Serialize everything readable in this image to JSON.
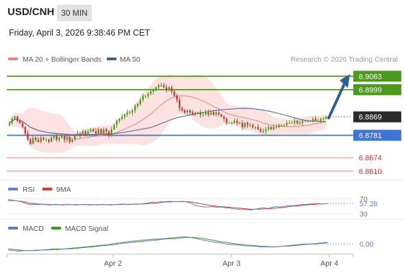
{
  "header": {
    "symbol": "USD/CNH",
    "timeframe": "30 MIN",
    "datetime": "Friday, April 3, 2026 9:38:46 PM CET"
  },
  "legend": {
    "ma20": "MA 20 + Bollinger Bands",
    "ma50": "MA 50",
    "credit": "Research © 2026 Trading Central"
  },
  "colors": {
    "resistance": "#4c9a1c",
    "support": "#3d74d8",
    "minor_support": "#f19393",
    "current": "#2b2b2b",
    "arrow": "#2c5e99",
    "candle_up": "#4a9a18",
    "candle_down": "#c83232",
    "ma20": "#ef7f7f",
    "ma50": "#3f5f9a",
    "bollinger_fill": "#fddddd",
    "rsi": "#5b7fd6",
    "rsi_ma": "#e63030",
    "macd": "#5b7fd6",
    "macd_signal": "#3a9a1a"
  },
  "chart_data": [
    {
      "type": "candlestick",
      "title": "USD/CNH 30 MIN",
      "x_ticks": [
        "Apr 2",
        "Apr 3",
        "Apr 4"
      ],
      "ylim": [
        6.857,
        6.91
      ],
      "levels": [
        {
          "label": "6.9063",
          "value": 6.9063,
          "kind": "resistance"
        },
        {
          "label": "6.8999",
          "value": 6.8999,
          "kind": "resistance"
        },
        {
          "label": "6.8869",
          "value": 6.8869,
          "kind": "current"
        },
        {
          "label": "6.8781",
          "value": 6.8781,
          "kind": "support"
        },
        {
          "label": "6.8674",
          "value": 6.8674,
          "kind": "minor_support"
        },
        {
          "label": "6.8610",
          "value": 6.861,
          "kind": "minor_support"
        }
      ],
      "forecast_target": 6.9063,
      "series": [
        {
          "name": "MA 20 + Bollinger Bands"
        },
        {
          "name": "MA 50"
        }
      ],
      "close": [
        6.884,
        6.886,
        6.887,
        6.885,
        6.884,
        6.882,
        6.879,
        6.876,
        6.874,
        6.877,
        6.876,
        6.875,
        6.877,
        6.876,
        6.876,
        6.875,
        6.877,
        6.878,
        6.876,
        6.877,
        6.878,
        6.876,
        6.877,
        6.875,
        6.876,
        6.878,
        6.879,
        6.878,
        6.88,
        6.878,
        6.88,
        6.881,
        6.88,
        6.879,
        6.881,
        6.879,
        6.881,
        6.88,
        6.878,
        6.881,
        6.883,
        6.885,
        6.886,
        6.887,
        6.888,
        6.889,
        6.889,
        6.89,
        6.892,
        6.893,
        6.895,
        6.897,
        6.897,
        6.898,
        6.899,
        6.9,
        6.901,
        6.902,
        6.902,
        6.901,
        6.9,
        6.901,
        6.899,
        6.897,
        6.895,
        6.891,
        6.89,
        6.889,
        6.89,
        6.889,
        6.888,
        6.889,
        6.889,
        6.888,
        6.888,
        6.889,
        6.888,
        6.889,
        6.888,
        6.889,
        6.888,
        6.887,
        6.886,
        6.884,
        6.884,
        6.884,
        6.885,
        6.884,
        6.884,
        6.882,
        6.884,
        6.883,
        6.883,
        6.882,
        6.882,
        6.881,
        6.88,
        6.88,
        6.881,
        6.882,
        6.881,
        6.882,
        6.882,
        6.883,
        6.883,
        6.883,
        6.884,
        6.884,
        6.884,
        6.885,
        6.884,
        6.884,
        6.885,
        6.885,
        6.885,
        6.885,
        6.886,
        6.885,
        6.885,
        6.886,
        6.886,
        6.887
      ]
    },
    {
      "type": "line",
      "title": "RSI",
      "ylim": [
        30,
        70
      ],
      "y_ticks": [
        30,
        70
      ],
      "current_value": 57.28,
      "series": [
        {
          "name": "RSI",
          "values": [
            67,
            66,
            64,
            62,
            58,
            54,
            55,
            54,
            55,
            54,
            53,
            55,
            54,
            53,
            55,
            54,
            53,
            54,
            55,
            53,
            54,
            53,
            55,
            54,
            53,
            54,
            55,
            56,
            54,
            55,
            56,
            56,
            57,
            59,
            61,
            60,
            62,
            62,
            63,
            62,
            62,
            63,
            61,
            58,
            52,
            50,
            48,
            48,
            49,
            47,
            48,
            46,
            45,
            43,
            42,
            41,
            41,
            40,
            42,
            44,
            46,
            44,
            47,
            49,
            48,
            50,
            52,
            51,
            53,
            54,
            55,
            56,
            57,
            57,
            56,
            57
          ]
        },
        {
          "name": "9MA",
          "values": [
            65,
            65,
            64,
            63,
            61,
            58,
            57,
            56,
            55,
            55,
            54,
            54,
            54,
            54,
            54,
            54,
            54,
            54,
            54,
            54,
            54,
            54,
            54,
            54,
            54,
            54,
            54,
            55,
            55,
            55,
            55,
            56,
            56,
            57,
            58,
            59,
            60,
            61,
            61,
            62,
            62,
            62,
            62,
            61,
            59,
            57,
            55,
            53,
            51,
            50,
            49,
            48,
            47,
            46,
            45,
            44,
            43,
            42,
            42,
            42,
            43,
            43,
            44,
            45,
            46,
            47,
            49,
            50,
            51,
            52,
            53,
            54,
            55,
            56,
            56,
            57
          ]
        }
      ]
    },
    {
      "type": "line",
      "title": "MACD",
      "current_value": 0.0,
      "y_ticks": [
        0.0
      ],
      "series": [
        {
          "name": "MACD",
          "values": [
            -0.001,
            -0.0011,
            -0.0012,
            -0.0011,
            -0.0011,
            -0.001,
            -0.001,
            -0.0009,
            -0.0008,
            -0.0008,
            -0.0008,
            -0.0007,
            -0.0006,
            -0.0005,
            -0.0004,
            -0.0003,
            -0.0002,
            -0.0001,
            0.0,
            0.0002,
            0.0003,
            0.0005,
            0.0006,
            0.0007,
            0.0008,
            0.0009,
            0.001,
            0.001,
            0.0011,
            0.0012,
            0.0013,
            0.0014,
            0.0014,
            0.0012,
            0.001,
            0.0008,
            0.0006,
            0.0004,
            0.0003,
            0.0001,
            0.0,
            -0.0001,
            -0.0002,
            -0.0003,
            -0.0003,
            -0.0004,
            -0.0004,
            -0.0004,
            -0.0004,
            -0.0003,
            -0.0002,
            -0.0001,
            0.0,
            0.0001,
            0.0001,
            0.0002,
            0.0003,
            0.0004
          ]
        },
        {
          "name": "MACD Signal",
          "values": [
            -0.0008,
            -0.0009,
            -0.001,
            -0.0011,
            -0.0011,
            -0.0011,
            -0.001,
            -0.001,
            -0.0009,
            -0.0009,
            -0.0008,
            -0.0008,
            -0.0007,
            -0.0006,
            -0.0005,
            -0.0004,
            -0.0003,
            -0.0002,
            -0.0001,
            0.0,
            0.0002,
            0.0003,
            0.0004,
            0.0005,
            0.0006,
            0.0007,
            0.0008,
            0.0009,
            0.001,
            0.0011,
            0.0011,
            0.0012,
            0.0013,
            0.0013,
            0.0012,
            0.0011,
            0.0009,
            0.0007,
            0.0005,
            0.0004,
            0.0002,
            0.0001,
            0.0,
            -0.0001,
            -0.0002,
            -0.0003,
            -0.0003,
            -0.0004,
            -0.0004,
            -0.0003,
            -0.0003,
            -0.0002,
            -0.0001,
            0.0,
            0.0001,
            0.0001,
            0.0002,
            0.0003
          ]
        }
      ]
    }
  ]
}
